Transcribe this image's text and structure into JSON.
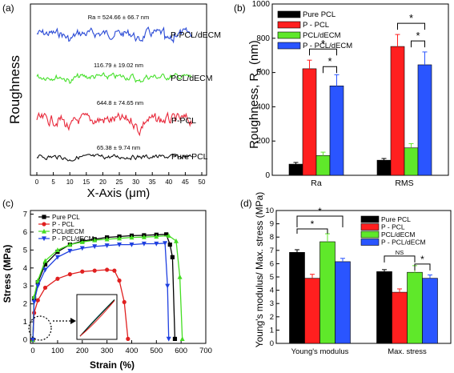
{
  "panel_labels": {
    "a": "(a)",
    "b": "(b)",
    "c": "(c)",
    "d": "(d)"
  },
  "chart_data": [
    {
      "panel": "(a)",
      "type": "line",
      "xlabel": "X-Axis (μm)",
      "ylabel": "Roughness",
      "xlim": [
        0,
        50
      ],
      "x_ticks": [
        "0",
        "5",
        "10",
        "15",
        "20",
        "25",
        "30",
        "35",
        "40",
        "45",
        "50"
      ],
      "series": [
        {
          "name": "P-PCL/dECM",
          "color": "#2b4bd6",
          "annotation": "Ra = 524.66 ± 66.7 nm"
        },
        {
          "name": "PCL/dECM",
          "color": "#45e02a",
          "annotation": "116.79 ± 19.02 nm"
        },
        {
          "name": "P-PCL",
          "color": "#e8283a",
          "annotation": "644.8 ± 74.65 nm"
        },
        {
          "name": "Pure PCL",
          "color": "#111111",
          "annotation": "65.38 ± 9.74 nm"
        }
      ]
    },
    {
      "panel": "(b)",
      "type": "bar",
      "ylabel": "Roughness, Ra (nm)",
      "ylabel_main": "Roughness, R",
      "ylabel_sub": "a",
      "ylabel_tail": " (nm)",
      "ylim": [
        0,
        1000
      ],
      "y_ticks": [
        "0",
        "200",
        "400",
        "600",
        "800",
        "1000"
      ],
      "categories": [
        "Ra",
        "RMS"
      ],
      "series": [
        {
          "name": "Pure PCL",
          "color": "#000000",
          "values": [
            65,
            88
          ],
          "errors": [
            10,
            10
          ]
        },
        {
          "name": "P - PCL",
          "color": "#ff1f1f",
          "values": [
            622,
            752
          ],
          "errors": [
            50,
            70
          ]
        },
        {
          "name": "PCL/dECM",
          "color": "#5fe82a",
          "values": [
            115,
            160
          ],
          "errors": [
            20,
            25
          ]
        },
        {
          "name": "P - PCL/dECM",
          "color": "#2a55ff",
          "values": [
            522,
            645
          ],
          "errors": [
            65,
            75
          ]
        }
      ],
      "significance": "*"
    },
    {
      "panel": "(c)",
      "type": "line",
      "xlabel": "Strain (%)",
      "ylabel": "Stress (MPa)",
      "xlim": [
        -10,
        700
      ],
      "ylim": [
        -0.2,
        7.2
      ],
      "x_ticks": [
        "0",
        "100",
        "200",
        "300",
        "400",
        "500",
        "600",
        "700"
      ],
      "y_ticks": [
        "0",
        "1",
        "2",
        "3",
        "4",
        "5",
        "6",
        "7"
      ],
      "series": [
        {
          "name": "Pure PCL",
          "color": "#000000",
          "marker": "square",
          "x": [
            0,
            5,
            20,
            50,
            100,
            150,
            200,
            250,
            300,
            350,
            400,
            450,
            500,
            540,
            555,
            565,
            575
          ],
          "y": [
            0,
            2.3,
            3.2,
            4.2,
            4.9,
            5.3,
            5.5,
            5.6,
            5.7,
            5.75,
            5.8,
            5.82,
            5.85,
            5.87,
            5.3,
            4.6,
            0.05
          ]
        },
        {
          "name": "P - PCL",
          "color": "#e02020",
          "marker": "circle",
          "x": [
            0,
            5,
            20,
            50,
            100,
            150,
            200,
            250,
            300,
            330,
            350,
            370,
            385
          ],
          "y": [
            0,
            1.5,
            2.2,
            2.9,
            3.4,
            3.65,
            3.8,
            3.85,
            3.9,
            3.85,
            3.3,
            2.1,
            0.05
          ]
        },
        {
          "name": "PCL/dECM",
          "color": "#44dd22",
          "marker": "triangle",
          "x": [
            0,
            5,
            20,
            50,
            100,
            150,
            200,
            250,
            300,
            350,
            400,
            450,
            500,
            550,
            580,
            595,
            605
          ],
          "y": [
            0,
            2.4,
            3.3,
            4.4,
            5.0,
            5.3,
            5.45,
            5.55,
            5.6,
            5.65,
            5.7,
            5.72,
            5.75,
            5.8,
            5.5,
            3.5,
            0.05
          ]
        },
        {
          "name": "P - PCL/dECM",
          "color": "#1f40e0",
          "marker": "down-triangle",
          "x": [
            0,
            5,
            20,
            50,
            100,
            150,
            200,
            250,
            300,
            350,
            400,
            450,
            500,
            535,
            545,
            550
          ],
          "y": [
            0,
            2.1,
            3.0,
            3.9,
            4.6,
            4.95,
            5.1,
            5.2,
            5.25,
            5.3,
            5.3,
            5.35,
            5.35,
            5.38,
            3.0,
            0.05
          ]
        }
      ]
    },
    {
      "panel": "(d)",
      "type": "bar",
      "ylabel": "Young's modulus/ Max. stress (MPa)",
      "ylim": [
        0,
        10
      ],
      "y_ticks": [
        "0",
        "1",
        "2",
        "3",
        "4",
        "5",
        "6",
        "7",
        "8",
        "9",
        "10"
      ],
      "categories": [
        "Young's modulus",
        "Max. stress"
      ],
      "series": [
        {
          "name": "Pure PCL",
          "color": "#000000",
          "values": [
            6.85,
            5.4
          ],
          "errors": [
            0.2,
            0.15
          ]
        },
        {
          "name": "P - PCL",
          "color": "#ff1f1f",
          "values": [
            4.9,
            3.85
          ],
          "errors": [
            0.3,
            0.25
          ]
        },
        {
          "name": "PCL/dECM",
          "color": "#5fe82a",
          "values": [
            7.65,
            5.35
          ],
          "errors": [
            0.6,
            0.5
          ]
        },
        {
          "name": "P - PCL/dECM",
          "color": "#2a55ff",
          "values": [
            6.15,
            4.9
          ],
          "errors": [
            0.25,
            0.25
          ]
        }
      ],
      "significance": [
        "*",
        "*",
        "NS",
        "*"
      ]
    }
  ]
}
